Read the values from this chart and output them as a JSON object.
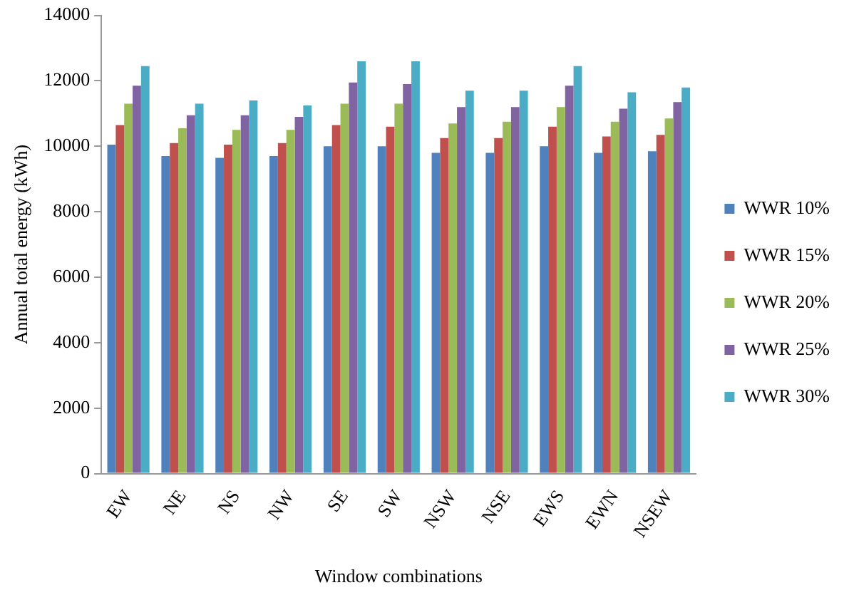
{
  "chart_data": {
    "type": "bar",
    "xlabel": "Window combinations",
    "ylabel": "Annual total energy (kWh)",
    "categories": [
      "EW",
      "NE",
      "NS",
      "NW",
      "SE",
      "SW",
      "NSW",
      "NSE",
      "EWS",
      "EWN",
      "NSEW"
    ],
    "series": [
      {
        "name": "WWR 10%",
        "color": "#4f81bd",
        "values": [
          10050,
          9700,
          9650,
          9700,
          10000,
          10000,
          9800,
          9800,
          10000,
          9800,
          9850
        ]
      },
      {
        "name": "WWR 15%",
        "color": "#c0504d",
        "values": [
          10650,
          10100,
          10050,
          10100,
          10650,
          10600,
          10250,
          10250,
          10600,
          10300,
          10350
        ]
      },
      {
        "name": "WWR 20%",
        "color": "#9bbb59",
        "values": [
          11300,
          10550,
          10500,
          10500,
          11300,
          11300,
          10700,
          10750,
          11200,
          10750,
          10850
        ]
      },
      {
        "name": "WWR 25%",
        "color": "#8064a2",
        "values": [
          11850,
          10950,
          10950,
          10900,
          11950,
          11900,
          11200,
          11200,
          11850,
          11150,
          11350
        ]
      },
      {
        "name": "WWR 30%",
        "color": "#4bacc6",
        "values": [
          12450,
          11300,
          11400,
          11250,
          12600,
          12600,
          11700,
          11700,
          12450,
          11650,
          11800
        ]
      }
    ],
    "ylim": [
      0,
      14000
    ],
    "yticks": [
      0,
      2000,
      4000,
      6000,
      8000,
      10000,
      12000,
      14000
    ],
    "grid": false,
    "legend": "right"
  }
}
